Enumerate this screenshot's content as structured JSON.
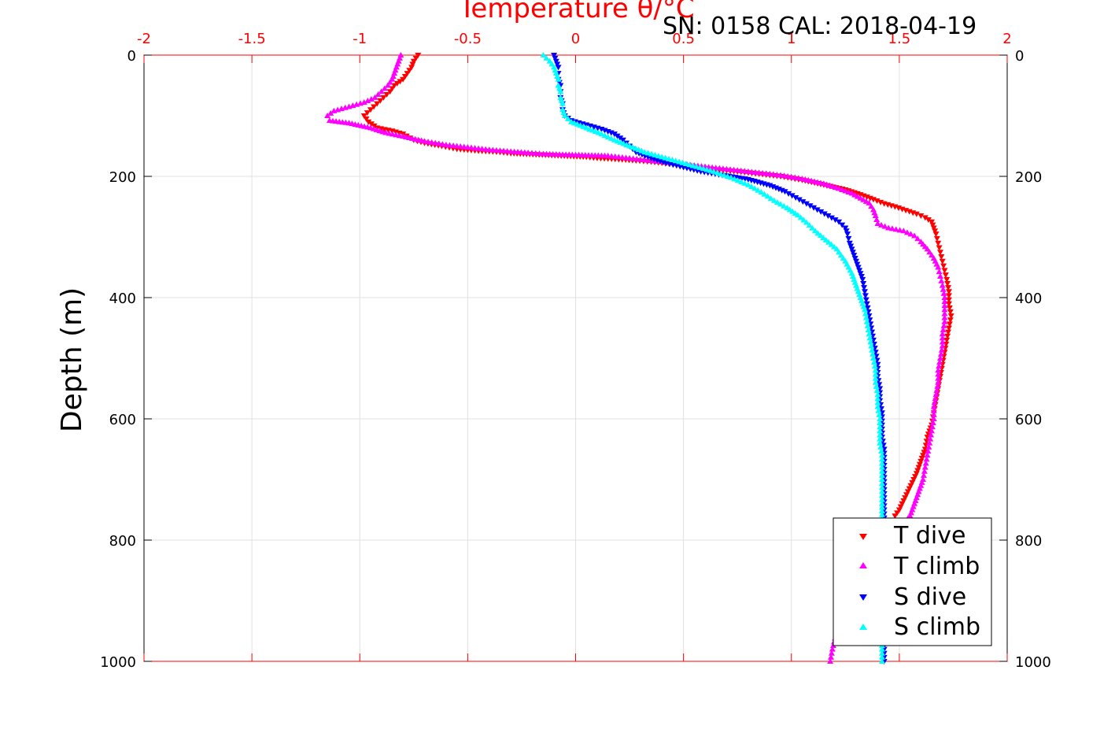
{
  "chart_data": {
    "type": "scatter",
    "title": "Temperature θ/°C",
    "subtitle": "SN: 0158  CAL: 2018-04-19",
    "xlabel": "Temperature θ/°C",
    "ylabel": "Depth (m)",
    "xlim": [
      -2,
      2
    ],
    "ylim": [
      0,
      1000
    ],
    "y_reversed": true,
    "x_ticks": [
      "-2",
      "-1.5",
      "-1",
      "-0.5",
      "0",
      "0.5",
      "1",
      "1.5",
      "2"
    ],
    "x_tick_values": [
      -2,
      -1.5,
      -1,
      -0.5,
      0,
      0.5,
      1,
      1.5,
      2
    ],
    "y_ticks": [
      "0",
      "200",
      "400",
      "600",
      "800",
      "1000"
    ],
    "y_tick_values": [
      0,
      200,
      400,
      600,
      800,
      1000
    ],
    "grid": true,
    "legend_position": "bottom-right",
    "colors": {
      "axis_top": "#ff0000",
      "axis": "#000000",
      "grid": "#e0e0e0"
    },
    "series": [
      {
        "name": "T dive",
        "color": "#ff0000",
        "marker": "triangle-down",
        "points": [
          [
            -0.73,
            0
          ],
          [
            -0.75,
            10
          ],
          [
            -0.76,
            20
          ],
          [
            -0.78,
            30
          ],
          [
            -0.8,
            40
          ],
          [
            -0.84,
            50
          ],
          [
            -0.86,
            60
          ],
          [
            -0.89,
            70
          ],
          [
            -0.92,
            80
          ],
          [
            -0.95,
            90
          ],
          [
            -0.98,
            100
          ],
          [
            -0.96,
            110
          ],
          [
            -0.92,
            120
          ],
          [
            -0.85,
            125
          ],
          [
            -0.8,
            130
          ],
          [
            -0.75,
            140
          ],
          [
            -0.7,
            145
          ],
          [
            -0.62,
            150
          ],
          [
            -0.55,
            155
          ],
          [
            -0.45,
            158
          ],
          [
            -0.35,
            160
          ],
          [
            -0.3,
            162
          ],
          [
            0.05,
            168
          ],
          [
            0.1,
            170
          ],
          [
            0.2,
            172
          ],
          [
            0.28,
            174
          ],
          [
            0.35,
            176
          ],
          [
            0.45,
            180
          ],
          [
            0.55,
            185
          ],
          [
            0.65,
            189
          ],
          [
            0.75,
            192
          ],
          [
            0.85,
            196
          ],
          [
            0.95,
            200
          ],
          [
            1.05,
            206
          ],
          [
            1.15,
            214
          ],
          [
            1.25,
            222
          ],
          [
            1.32,
            230
          ],
          [
            1.38,
            238
          ],
          [
            1.43,
            245
          ],
          [
            1.48,
            250
          ],
          [
            1.53,
            256
          ],
          [
            1.58,
            262
          ],
          [
            1.62,
            268
          ],
          [
            1.65,
            275
          ],
          [
            1.66,
            285
          ],
          [
            1.67,
            295
          ],
          [
            1.68,
            310
          ],
          [
            1.69,
            325
          ],
          [
            1.7,
            340
          ],
          [
            1.71,
            355
          ],
          [
            1.72,
            370
          ],
          [
            1.73,
            390
          ],
          [
            1.73,
            410
          ],
          [
            1.74,
            430
          ],
          [
            1.73,
            450
          ],
          [
            1.72,
            470
          ],
          [
            1.71,
            490
          ],
          [
            1.7,
            510
          ],
          [
            1.69,
            530
          ],
          [
            1.68,
            550
          ],
          [
            1.67,
            570
          ],
          [
            1.66,
            590
          ],
          [
            1.65,
            610
          ],
          [
            1.63,
            630
          ],
          [
            1.62,
            650
          ],
          [
            1.6,
            670
          ],
          [
            1.58,
            690
          ],
          [
            1.56,
            705
          ],
          [
            1.54,
            720
          ],
          [
            1.52,
            735
          ],
          [
            1.5,
            750
          ],
          [
            1.48,
            760
          ]
        ]
      },
      {
        "name": "T climb",
        "color": "#ff00ff",
        "marker": "triangle-up",
        "points": [
          [
            -0.81,
            0
          ],
          [
            -0.82,
            10
          ],
          [
            -0.83,
            20
          ],
          [
            -0.84,
            30
          ],
          [
            -0.85,
            40
          ],
          [
            -0.87,
            50
          ],
          [
            -0.9,
            60
          ],
          [
            -0.93,
            70
          ],
          [
            -0.98,
            78
          ],
          [
            -1.05,
            85
          ],
          [
            -1.12,
            92
          ],
          [
            -1.15,
            100
          ],
          [
            -1.14,
            108
          ],
          [
            -1.05,
            112
          ],
          [
            -0.95,
            120
          ],
          [
            -0.88,
            128
          ],
          [
            -0.8,
            134
          ],
          [
            -0.7,
            142
          ],
          [
            -0.6,
            148
          ],
          [
            -0.5,
            152
          ],
          [
            -0.4,
            156
          ],
          [
            -0.3,
            159
          ],
          [
            -0.22,
            161
          ],
          [
            -0.15,
            163
          ],
          [
            0.15,
            166
          ],
          [
            0.25,
            170
          ],
          [
            0.35,
            174
          ],
          [
            0.45,
            178
          ],
          [
            0.55,
            182
          ],
          [
            0.65,
            186
          ],
          [
            0.75,
            190
          ],
          [
            0.85,
            194
          ],
          [
            0.95,
            198
          ],
          [
            1.05,
            204
          ],
          [
            1.15,
            212
          ],
          [
            1.22,
            220
          ],
          [
            1.28,
            228
          ],
          [
            1.32,
            236
          ],
          [
            1.36,
            244
          ],
          [
            1.38,
            255
          ],
          [
            1.39,
            265
          ],
          [
            1.4,
            278
          ],
          [
            1.45,
            285
          ],
          [
            1.52,
            290
          ],
          [
            1.57,
            298
          ],
          [
            1.6,
            308
          ],
          [
            1.63,
            320
          ],
          [
            1.66,
            335
          ],
          [
            1.68,
            350
          ],
          [
            1.69,
            365
          ],
          [
            1.7,
            380
          ],
          [
            1.71,
            400
          ],
          [
            1.71,
            420
          ],
          [
            1.71,
            440
          ],
          [
            1.7,
            460
          ],
          [
            1.7,
            480
          ],
          [
            1.69,
            500
          ],
          [
            1.68,
            520
          ],
          [
            1.68,
            540
          ],
          [
            1.67,
            560
          ],
          [
            1.66,
            580
          ],
          [
            1.66,
            600
          ],
          [
            1.65,
            620
          ],
          [
            1.64,
            640
          ],
          [
            1.63,
            660
          ],
          [
            1.62,
            680
          ],
          [
            1.61,
            700
          ],
          [
            1.59,
            720
          ],
          [
            1.57,
            740
          ],
          [
            1.55,
            760
          ],
          [
            1.5,
            780
          ],
          [
            1.45,
            800
          ],
          [
            1.38,
            830
          ],
          [
            1.32,
            860
          ],
          [
            1.28,
            890
          ],
          [
            1.24,
            920
          ],
          [
            1.21,
            950
          ],
          [
            1.19,
            980
          ],
          [
            1.18,
            1000
          ]
        ]
      },
      {
        "name": "S dive",
        "color": "#0000ff",
        "marker": "triangle-down",
        "points": [
          [
            -0.1,
            0
          ],
          [
            -0.09,
            10
          ],
          [
            -0.08,
            20
          ],
          [
            -0.08,
            30
          ],
          [
            -0.08,
            40
          ],
          [
            -0.07,
            50
          ],
          [
            -0.07,
            60
          ],
          [
            -0.07,
            70
          ],
          [
            -0.06,
            80
          ],
          [
            -0.06,
            90
          ],
          [
            -0.05,
            100
          ],
          [
            -0.02,
            108
          ],
          [
            0.05,
            115
          ],
          [
            0.12,
            122
          ],
          [
            0.18,
            130
          ],
          [
            0.22,
            140
          ],
          [
            0.25,
            150
          ],
          [
            0.28,
            160
          ],
          [
            0.35,
            170
          ],
          [
            0.42,
            178
          ],
          [
            0.5,
            185
          ],
          [
            0.58,
            192
          ],
          [
            0.68,
            198
          ],
          [
            0.8,
            205
          ],
          [
            0.9,
            215
          ],
          [
            0.97,
            225
          ],
          [
            1.02,
            235
          ],
          [
            1.07,
            245
          ],
          [
            1.12,
            255
          ],
          [
            1.17,
            265
          ],
          [
            1.22,
            275
          ],
          [
            1.25,
            285
          ],
          [
            1.26,
            295
          ],
          [
            1.27,
            310
          ],
          [
            1.29,
            330
          ],
          [
            1.31,
            350
          ],
          [
            1.33,
            370
          ],
          [
            1.34,
            390
          ],
          [
            1.35,
            410
          ],
          [
            1.36,
            430
          ],
          [
            1.37,
            450
          ],
          [
            1.38,
            470
          ],
          [
            1.39,
            490
          ],
          [
            1.4,
            510
          ],
          [
            1.4,
            530
          ],
          [
            1.41,
            550
          ],
          [
            1.41,
            570
          ],
          [
            1.42,
            590
          ],
          [
            1.42,
            610
          ],
          [
            1.42,
            630
          ],
          [
            1.43,
            650
          ],
          [
            1.43,
            670
          ],
          [
            1.43,
            690
          ],
          [
            1.43,
            710
          ],
          [
            1.43,
            730
          ],
          [
            1.43,
            750
          ],
          [
            1.43,
            770
          ],
          [
            1.43,
            800
          ],
          [
            1.43,
            830
          ],
          [
            1.43,
            860
          ],
          [
            1.43,
            890
          ],
          [
            1.43,
            920
          ],
          [
            1.43,
            950
          ],
          [
            1.43,
            980
          ],
          [
            1.43,
            1000
          ]
        ]
      },
      {
        "name": "S climb",
        "color": "#00ffff",
        "marker": "triangle-up",
        "points": [
          [
            -0.15,
            0
          ],
          [
            -0.12,
            10
          ],
          [
            -0.1,
            20
          ],
          [
            -0.09,
            30
          ],
          [
            -0.08,
            40
          ],
          [
            -0.08,
            50
          ],
          [
            -0.07,
            60
          ],
          [
            -0.07,
            70
          ],
          [
            -0.06,
            80
          ],
          [
            -0.06,
            90
          ],
          [
            -0.05,
            100
          ],
          [
            -0.02,
            110
          ],
          [
            0.05,
            120
          ],
          [
            0.12,
            130
          ],
          [
            0.18,
            140
          ],
          [
            0.25,
            150
          ],
          [
            0.32,
            160
          ],
          [
            0.4,
            168
          ],
          [
            0.48,
            176
          ],
          [
            0.56,
            184
          ],
          [
            0.64,
            192
          ],
          [
            0.72,
            202
          ],
          [
            0.8,
            214
          ],
          [
            0.86,
            226
          ],
          [
            0.92,
            240
          ],
          [
            0.98,
            252
          ],
          [
            1.03,
            264
          ],
          [
            1.07,
            276
          ],
          [
            1.11,
            290
          ],
          [
            1.16,
            305
          ],
          [
            1.21,
            320
          ],
          [
            1.25,
            340
          ],
          [
            1.28,
            360
          ],
          [
            1.3,
            380
          ],
          [
            1.32,
            400
          ],
          [
            1.34,
            420
          ],
          [
            1.35,
            440
          ],
          [
            1.36,
            460
          ],
          [
            1.37,
            480
          ],
          [
            1.38,
            500
          ],
          [
            1.39,
            520
          ],
          [
            1.39,
            540
          ],
          [
            1.4,
            560
          ],
          [
            1.4,
            580
          ],
          [
            1.41,
            600
          ],
          [
            1.41,
            620
          ],
          [
            1.41,
            640
          ],
          [
            1.42,
            660
          ],
          [
            1.42,
            680
          ],
          [
            1.42,
            700
          ],
          [
            1.42,
            720
          ],
          [
            1.42,
            740
          ],
          [
            1.42,
            770
          ],
          [
            1.42,
            800
          ],
          [
            1.42,
            830
          ],
          [
            1.42,
            860
          ],
          [
            1.42,
            890
          ],
          [
            1.42,
            920
          ],
          [
            1.42,
            950
          ],
          [
            1.42,
            980
          ],
          [
            1.42,
            1000
          ]
        ]
      }
    ]
  }
}
